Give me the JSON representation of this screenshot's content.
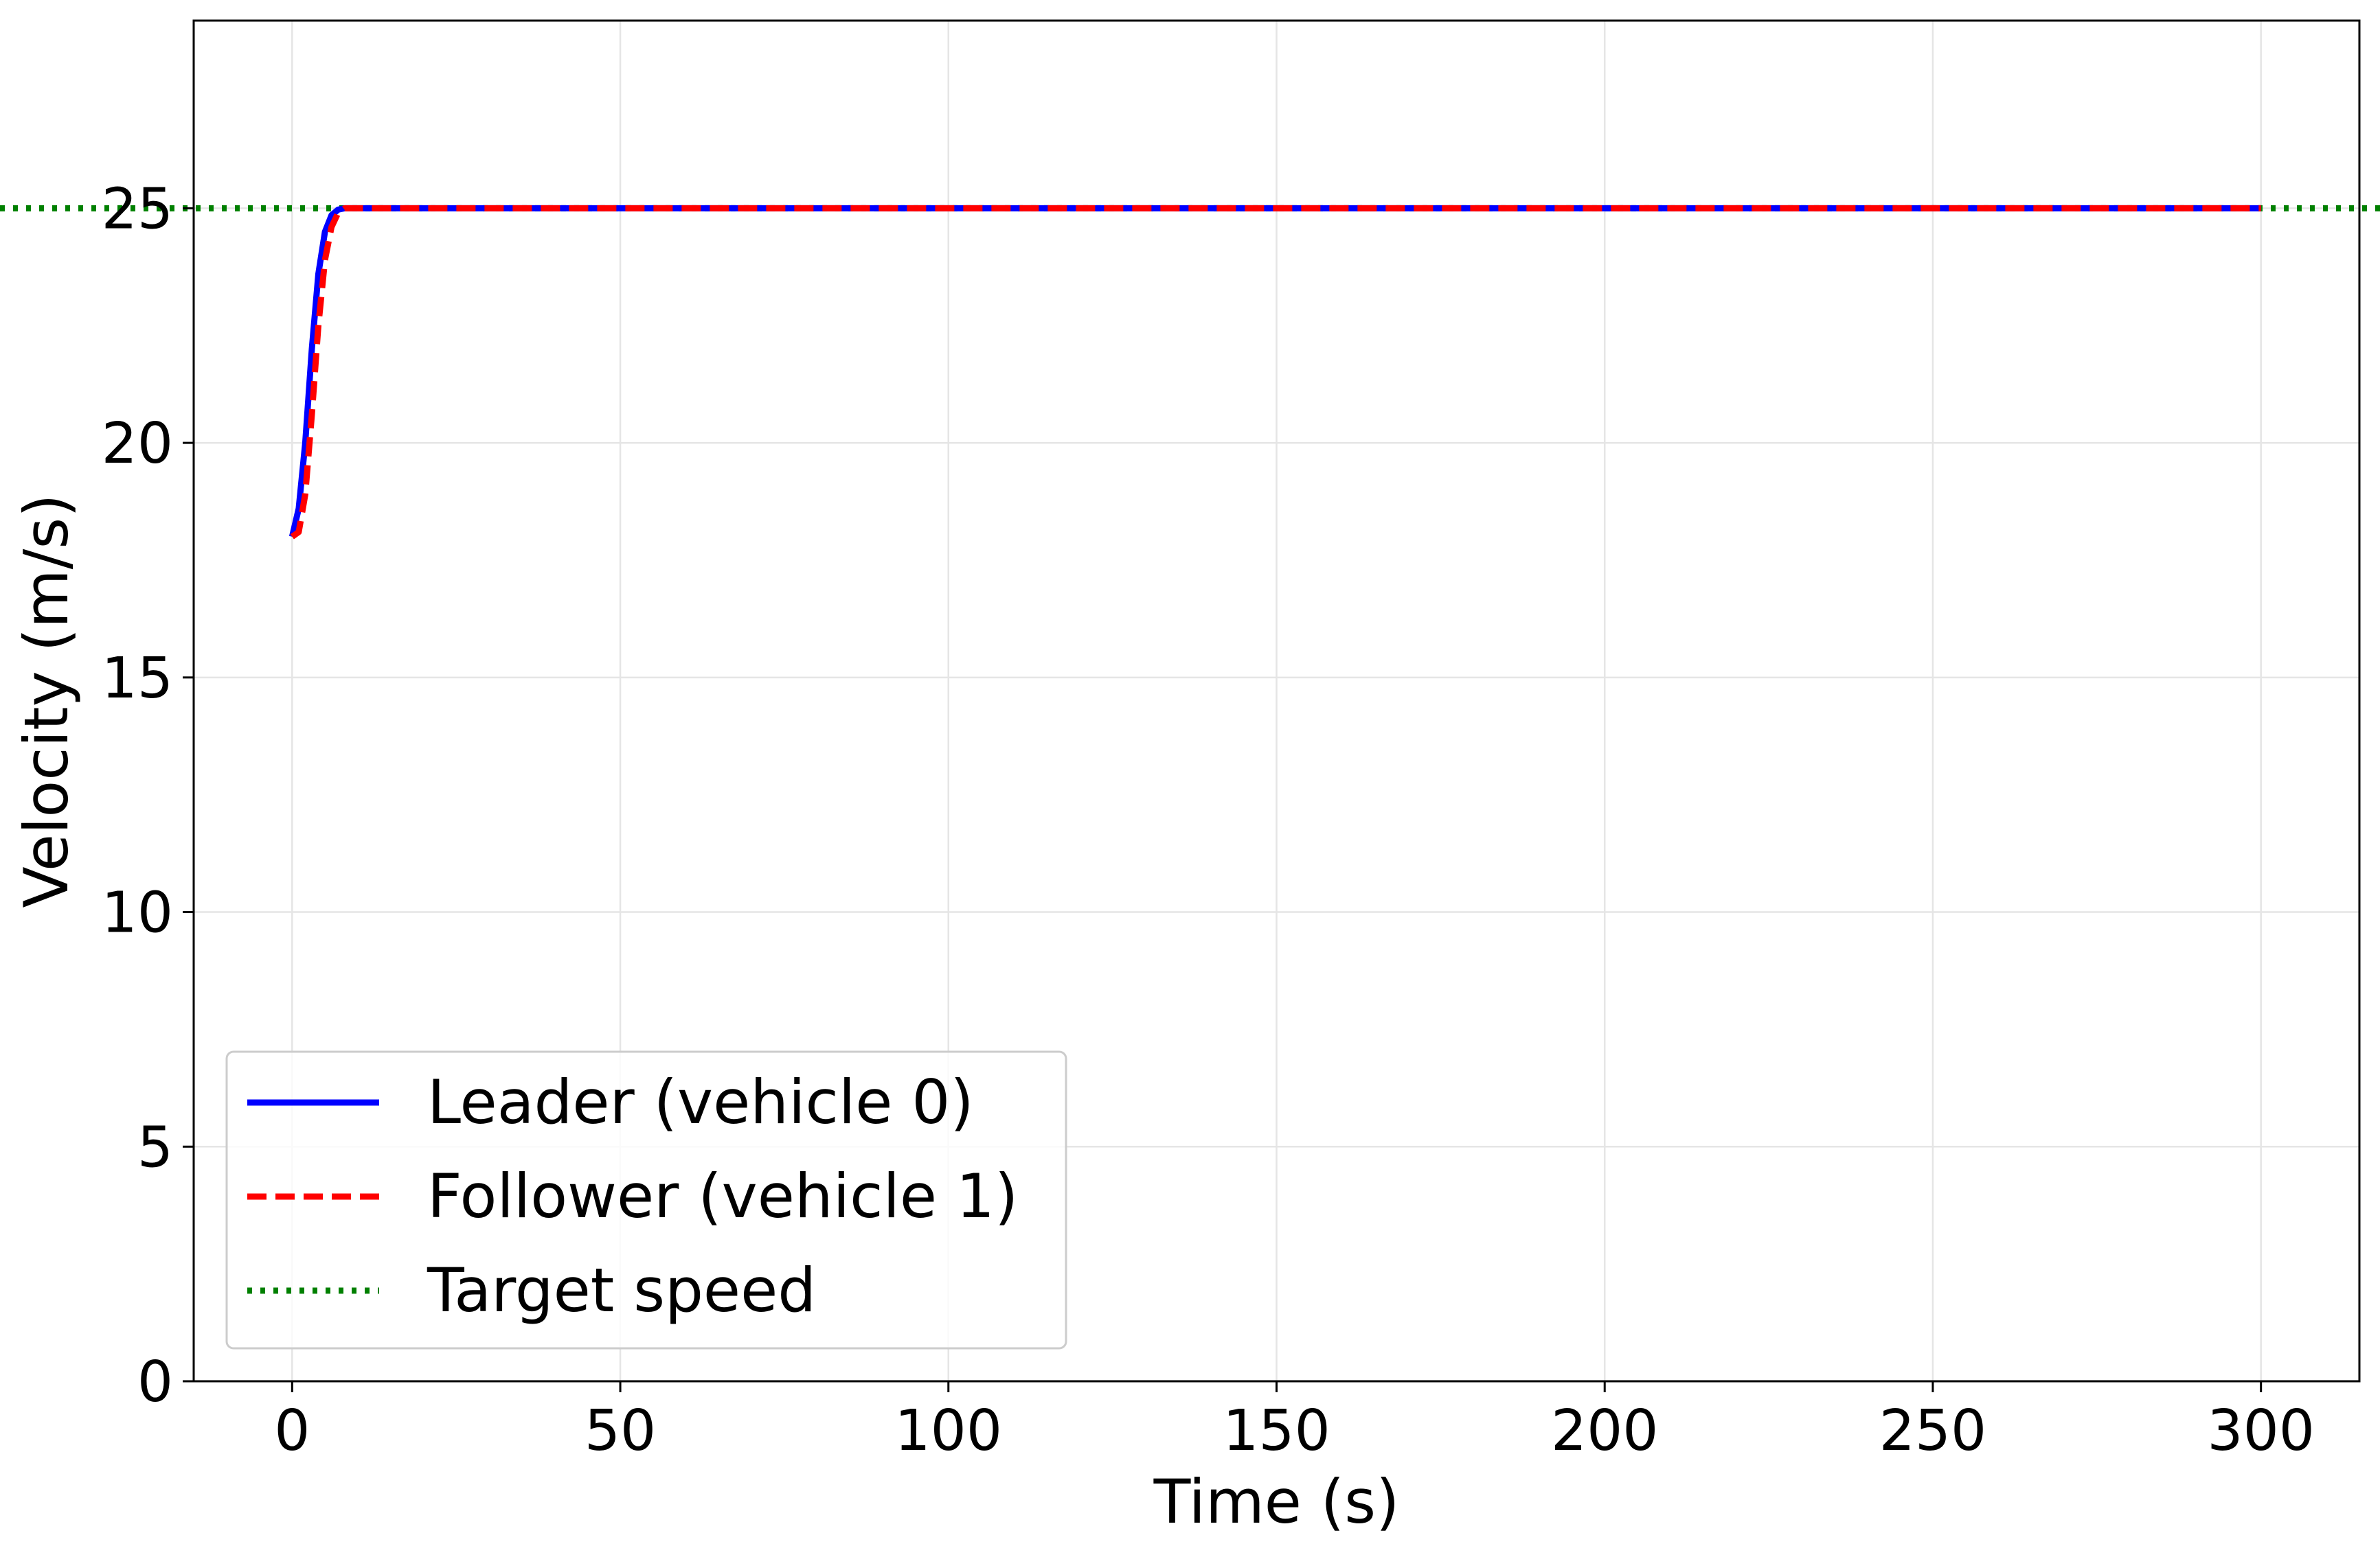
{
  "chart_data": {
    "type": "line",
    "title": "",
    "xlabel": "Time (s)",
    "ylabel": "Velocity (m/s)",
    "xlim": [
      -15,
      315
    ],
    "ylim": [
      0,
      29
    ],
    "xticks": [
      0,
      50,
      100,
      150,
      200,
      250,
      300
    ],
    "yticks": [
      0,
      5,
      10,
      15,
      20,
      25
    ],
    "xtick_labels": [
      "0",
      "50",
      "100",
      "150",
      "200",
      "250",
      "300"
    ],
    "ytick_labels": [
      "0",
      "5",
      "10",
      "15",
      "20",
      "25"
    ],
    "grid": true,
    "legend_position": "lower-left",
    "series": [
      {
        "name": "Leader (vehicle 0)",
        "color": "#0000ff",
        "style": "solid",
        "x": [
          0,
          1,
          2,
          3,
          4,
          5,
          6,
          7,
          8,
          9,
          10,
          300
        ],
        "y": [
          18,
          18.6,
          20.0,
          22.0,
          23.6,
          24.5,
          24.85,
          24.97,
          25,
          25,
          25,
          25
        ]
      },
      {
        "name": "Follower (vehicle 1)",
        "color": "#ff0000",
        "style": "dashed",
        "x": [
          0,
          1,
          2,
          3,
          4,
          5,
          6,
          7,
          8,
          9,
          10,
          300
        ],
        "y": [
          18,
          18.1,
          18.9,
          20.6,
          22.5,
          23.9,
          24.6,
          24.9,
          25,
          25,
          25,
          25
        ]
      },
      {
        "name": "Target speed",
        "color": "#008000",
        "style": "dotted",
        "x": [
          -15,
          315
        ],
        "y": [
          25,
          25
        ]
      }
    ]
  }
}
